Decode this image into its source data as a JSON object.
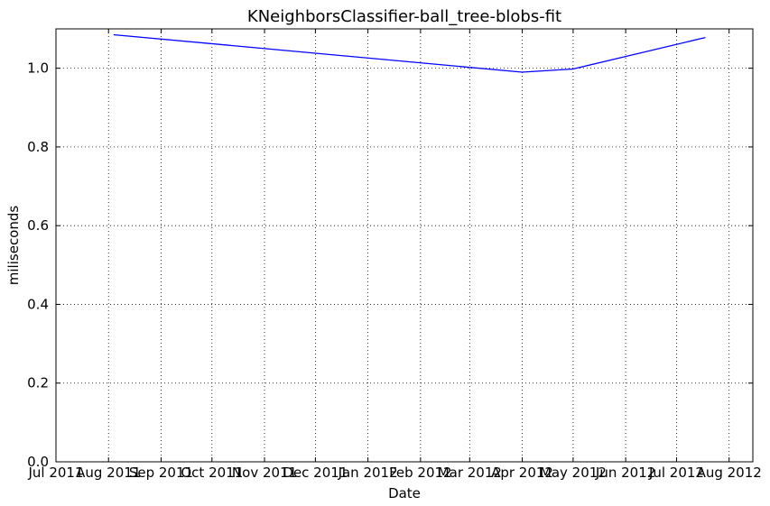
{
  "chart_data": {
    "type": "line",
    "title": "KNeighborsClassifier-ball_tree-blobs-fit",
    "xlabel": "Date",
    "ylabel": "miliseconds",
    "x_tick_labels": [
      "Jul 2011",
      "Aug 2011",
      "Sep 2011",
      "Oct 2011",
      "Nov 2011",
      "Dec 2011",
      "Jan 2012",
      "Feb 2012",
      "Mar 2012",
      "Apr 2012",
      "May 2012",
      "Jun 2012",
      "Jul 2012",
      "Aug 2012"
    ],
    "y_tick_labels": [
      "0.0",
      "0.2",
      "0.4",
      "0.6",
      "0.8",
      "1.0"
    ],
    "xlim": [
      "2011-07-01",
      "2012-08-15"
    ],
    "ylim": [
      0.0,
      1.1
    ],
    "grid": true,
    "series": [
      {
        "color": "#0000ff",
        "x": [
          "2011-08-04",
          "2012-04-01",
          "2012-05-01",
          "2012-07-18"
        ],
        "y": [
          1.085,
          0.99,
          0.998,
          1.078
        ]
      }
    ]
  }
}
